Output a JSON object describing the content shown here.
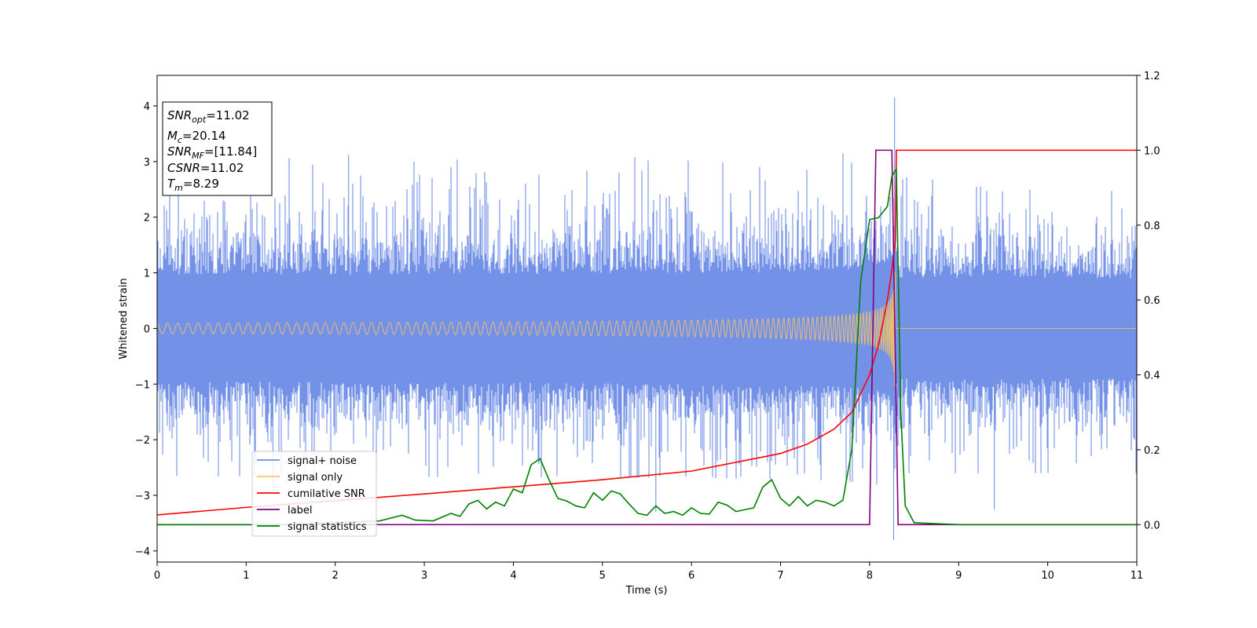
{
  "chart_data": {
    "type": "line",
    "xlabel": "Time (s)",
    "ylabel": "Whitened strain",
    "xlim": [
      0,
      11
    ],
    "ylim_left": [
      -4.2,
      4.55
    ],
    "ylim_right": [
      -0.1,
      1.2
    ],
    "x_ticks": [
      0,
      1,
      2,
      3,
      4,
      5,
      6,
      7,
      8,
      9,
      10,
      11
    ],
    "y_ticks_left": [
      4,
      3,
      2,
      1,
      0,
      -1,
      -2,
      -3,
      -4
    ],
    "y_ticks_right": [
      1.2,
      1.0,
      0.8,
      0.6,
      0.4,
      0.2,
      0.0
    ],
    "grid": false,
    "legend_position": "lower-left",
    "info_box": {
      "snr_opt": "SNR_opt=11.02",
      "mc": "M_c=20.14",
      "snr_mf": "SNR_MF=[11.84]",
      "csnr": "CSNR=11.02",
      "tm": "T_m=8.29"
    },
    "series": [
      {
        "name": "signal+ noise",
        "axis": "left",
        "color": "#6b8ce6",
        "style": "dense noise, amplitude about ±1.8, peaks to ±3.1, spike to 4.15 near t=8.28",
        "envelope_typical": 1.8,
        "notable_spikes": [
          [
            2.15,
            3.12
          ],
          [
            3.3,
            2.9
          ],
          [
            8.28,
            4.15
          ],
          [
            8.27,
            -3.8
          ],
          [
            5.6,
            -3.3
          ],
          [
            9.4,
            -3.25
          ],
          [
            1.3,
            -2.8
          ]
        ]
      },
      {
        "name": "signal only",
        "axis": "left",
        "color": "#fbc462",
        "style": "chirp, amplitude grows from 0.03 to 1.05 at t=8.29 then zero",
        "amplitude_start": 0.03,
        "amplitude_peak": 1.05,
        "merger_time": 8.29
      },
      {
        "name": "cumilative SNR",
        "axis": "right",
        "color": "#ff0000",
        "x": [
          0,
          1,
          2,
          3,
          4,
          5,
          6,
          7,
          7.3,
          7.6,
          7.8,
          8.0,
          8.1,
          8.2,
          8.25,
          8.29,
          8.3,
          11
        ],
        "y": [
          0.026,
          0.046,
          0.064,
          0.082,
          0.101,
          0.12,
          0.143,
          0.19,
          0.215,
          0.255,
          0.3,
          0.4,
          0.48,
          0.6,
          0.68,
          0.76,
          1.0,
          1.0
        ]
      },
      {
        "name": "label",
        "axis": "right",
        "color": "#800080",
        "x": [
          0,
          8.0,
          8.07,
          8.25,
          8.32,
          11
        ],
        "y": [
          0,
          0,
          1,
          1,
          0,
          0
        ]
      },
      {
        "name": "signal statistics",
        "axis": "right",
        "color": "#008000",
        "x": [
          0,
          0.5,
          1,
          1.5,
          2,
          2.5,
          2.75,
          2.9,
          3.1,
          3.3,
          3.4,
          3.5,
          3.6,
          3.7,
          3.8,
          3.9,
          4.0,
          4.1,
          4.2,
          4.3,
          4.4,
          4.5,
          4.6,
          4.7,
          4.8,
          4.9,
          5.0,
          5.1,
          5.2,
          5.3,
          5.4,
          5.5,
          5.6,
          5.7,
          5.8,
          5.9,
          6.0,
          6.1,
          6.2,
          6.3,
          6.4,
          6.5,
          6.6,
          6.7,
          6.8,
          6.9,
          7.0,
          7.1,
          7.2,
          7.3,
          7.4,
          7.5,
          7.6,
          7.7,
          7.8,
          7.9,
          8.0,
          8.1,
          8.2,
          8.25,
          8.3,
          8.35,
          8.4,
          8.5,
          9,
          11
        ],
        "y": [
          0.0,
          0.0,
          0.0,
          0.0,
          0.005,
          0.01,
          0.025,
          0.012,
          0.01,
          0.03,
          0.022,
          0.055,
          0.065,
          0.042,
          0.06,
          0.05,
          0.095,
          0.085,
          0.16,
          0.176,
          0.12,
          0.07,
          0.063,
          0.05,
          0.045,
          0.085,
          0.065,
          0.09,
          0.082,
          0.055,
          0.03,
          0.025,
          0.05,
          0.03,
          0.035,
          0.025,
          0.045,
          0.03,
          0.028,
          0.06,
          0.052,
          0.035,
          0.04,
          0.045,
          0.1,
          0.12,
          0.07,
          0.05,
          0.075,
          0.05,
          0.065,
          0.06,
          0.05,
          0.065,
          0.2,
          0.65,
          0.815,
          0.82,
          0.85,
          0.93,
          0.95,
          0.3,
          0.05,
          0.005,
          0.0,
          0.0
        ]
      }
    ]
  }
}
